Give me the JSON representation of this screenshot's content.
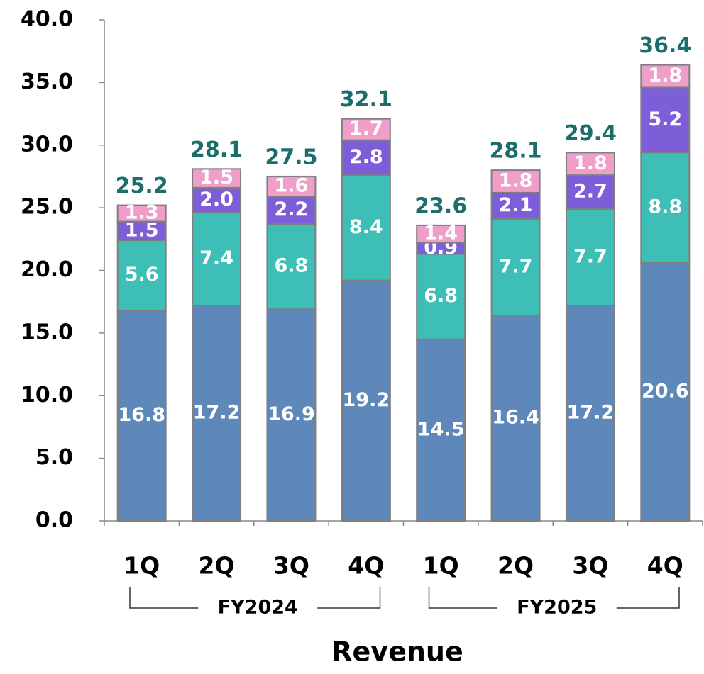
{
  "chart_data": {
    "type": "stacked_bar",
    "x_label": "Revenue",
    "categories": [
      "1Q",
      "2Q",
      "3Q",
      "4Q",
      "1Q",
      "2Q",
      "3Q",
      "4Q"
    ],
    "groups": [
      "FY2024",
      "FY2025"
    ],
    "series": [
      {
        "color": "#5f88ba",
        "values": [
          16.8,
          17.2,
          16.9,
          19.2,
          14.5,
          16.4,
          17.2,
          20.6
        ],
        "value_labels": [
          "16.8",
          "17.2",
          "16.9",
          "19.2",
          "14.5",
          "16.4",
          "17.2",
          "20.6"
        ]
      },
      {
        "color": "#3dbfb8",
        "values": [
          5.6,
          7.4,
          6.8,
          8.4,
          6.8,
          7.7,
          7.7,
          8.8
        ],
        "value_labels": [
          "5.6",
          "7.4",
          "6.8",
          "8.4",
          "6.8",
          "7.7",
          "7.7",
          "8.8"
        ]
      },
      {
        "color": "#7e5ed8",
        "values": [
          1.5,
          2.0,
          2.2,
          2.8,
          0.9,
          2.1,
          2.7,
          5.2
        ],
        "value_labels": [
          "1.5",
          "2.0",
          "2.2",
          "2.8",
          "0.9",
          "2.1",
          "2.7",
          "5.2"
        ]
      },
      {
        "color": "#ef9ec9",
        "values": [
          1.3,
          1.5,
          1.6,
          1.7,
          1.4,
          1.8,
          1.8,
          1.8
        ],
        "value_labels": [
          "1.3",
          "1.5",
          "1.6",
          "1.7",
          "1.4",
          "1.8",
          "1.8",
          "1.8"
        ]
      }
    ],
    "totals": [
      25.2,
      28.1,
      27.5,
      32.1,
      23.6,
      28.1,
      29.4,
      36.4
    ],
    "totals_color": "#1b6e6c",
    "ylim": [
      0,
      40
    ],
    "yticks": [
      {
        "value": 0,
        "label": "0.0"
      },
      {
        "value": 5,
        "label": "5.0"
      },
      {
        "value": 10,
        "label": "10.0"
      },
      {
        "value": 15,
        "label": "15.0"
      },
      {
        "value": 20,
        "label": "20.0"
      },
      {
        "value": 25,
        "label": "25.0"
      },
      {
        "value": 30,
        "label": "30.0"
      },
      {
        "value": 35,
        "label": "35.0"
      },
      {
        "value": 40,
        "label": "40.0"
      }
    ],
    "grid": false
  }
}
